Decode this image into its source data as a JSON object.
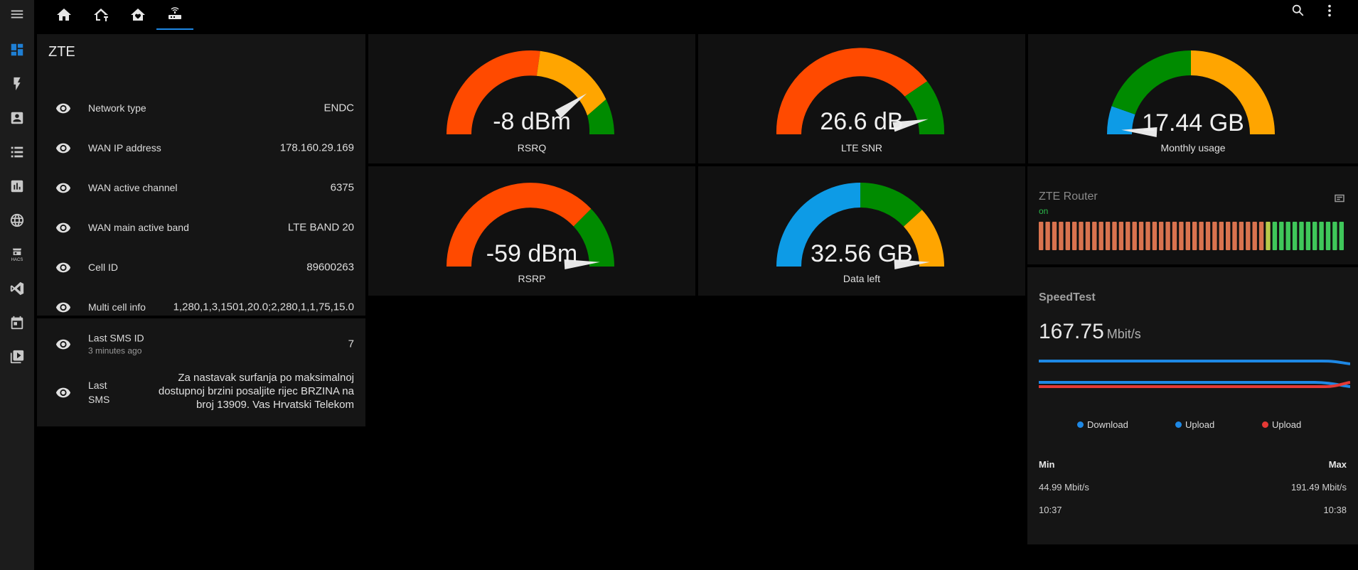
{
  "nav": {
    "top_tabs": [
      "home",
      "home-network",
      "home-heart",
      "router"
    ],
    "sidebar_icons": [
      "view-dashboard",
      "lightning",
      "account-box",
      "format-list",
      "chart-box",
      "web",
      "hacs",
      "vscode",
      "calendar",
      "media"
    ],
    "hacs_label": "HACS"
  },
  "entities": {
    "title": "ZTE",
    "rows": [
      {
        "label": "Network type",
        "value": "ENDC"
      },
      {
        "label": "WAN IP address",
        "value": "178.160.29.169"
      },
      {
        "label": "WAN active channel",
        "value": "6375"
      },
      {
        "label": "WAN main active band",
        "value": "LTE BAND 20"
      },
      {
        "label": "Cell ID",
        "value": "89600263"
      },
      {
        "label": "Multi cell info",
        "value": "1,280,1,3,1501,20.0;2,280,1,1,75,15.0"
      }
    ]
  },
  "sms": {
    "last_id_label": "Last SMS ID",
    "last_id_sub": "3 minutes ago",
    "last_id_value": "7",
    "last_sms_label_1": "Last",
    "last_sms_label_2": "SMS",
    "last_sms_text": "Za nastavak surfanja po maksimalnoj dostupnoj brzini posaljite rijec BRZINA na broj 13909. Vas Hrvatski Telekom"
  },
  "gauges": {
    "rsrq": {
      "value": "-8 dBm",
      "name": "RSRQ",
      "fraction": 0.8
    },
    "snr": {
      "value": "26.6 dB",
      "name": "LTE SNR",
      "fraction": 0.93
    },
    "usage": {
      "value": "17.44 GB",
      "name": "Monthly usage",
      "fraction": 0.02
    },
    "rsrp": {
      "value": "-59 dBm",
      "name": "RSRP",
      "fraction": 0.98
    },
    "left": {
      "value": "32.56 GB",
      "name": "Data left",
      "fraction": 0.98
    }
  },
  "router": {
    "title": "ZTE Router",
    "state": "on",
    "bars_red": 34,
    "bars_yellow": 1,
    "bars_green": 11,
    "colors": {
      "red": "#d9734f",
      "yellow": "#b8c94a",
      "green": "#3fc75a"
    }
  },
  "speedtest": {
    "title": "SpeedTest",
    "value": "167.75",
    "unit": "Mbit/s",
    "legend": [
      {
        "label": "Download",
        "color": "#1e88e5"
      },
      {
        "label": "Upload",
        "color": "#1e88e5"
      },
      {
        "label": "Upload",
        "color": "#e53935"
      }
    ],
    "min_label": "Min",
    "max_label": "Max",
    "min_value": "44.99 Mbit/s",
    "max_value": "191.49 Mbit/s",
    "min_time": "10:37",
    "max_time": "10:38"
  },
  "colors": {
    "red": "#ff4a00",
    "orange": "#ffa500",
    "green": "#008b00",
    "blue": "#0d9be6",
    "accent": "#1e88e5"
  }
}
